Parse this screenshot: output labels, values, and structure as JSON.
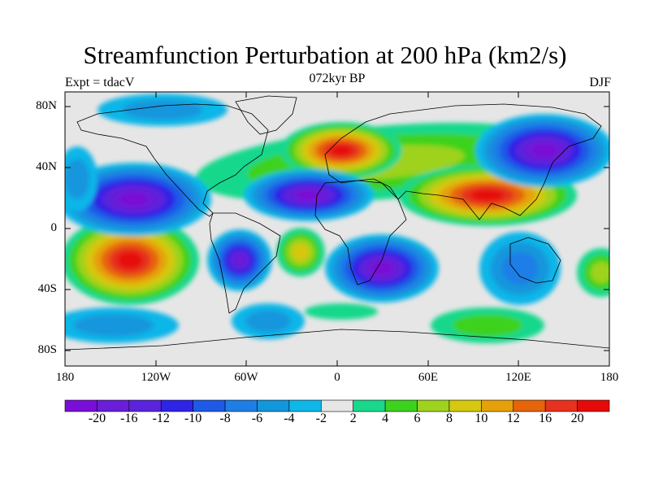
{
  "title": "Streamfunction Perturbation at 200 hPa (km2/s)",
  "subtitle_left": "Expt = tdacV",
  "subtitle_center": "072kyr BP",
  "subtitle_right": "DJF",
  "axes": {
    "y_ticks": [
      "80N",
      "40N",
      "0",
      "40S",
      "80S"
    ],
    "x_ticks": [
      "180",
      "120W",
      "60W",
      "0",
      "60E",
      "120E",
      "180"
    ]
  },
  "colorbar": {
    "labels": [
      "-20",
      "-16",
      "-12",
      "-10",
      "-8",
      "-6",
      "-4",
      "-2",
      "2",
      "4",
      "6",
      "8",
      "10",
      "12",
      "16",
      "20"
    ],
    "colors": [
      "#7a0ed6",
      "#6a1ed8",
      "#5a24dc",
      "#2f24e6",
      "#1e5ae6",
      "#1e7ee6",
      "#1296dc",
      "#0fb6e8",
      "#e6e6e6",
      "#19d88c",
      "#3cd21e",
      "#9ed21e",
      "#d6c80f",
      "#e6a00a",
      "#e6640a",
      "#e6321e",
      "#e60a0a"
    ]
  },
  "map_features": [
    {
      "name": "streamfunction-minimum",
      "location": "North Pacific",
      "level": "-20"
    },
    {
      "name": "streamfunction-minimum",
      "location": "North Atlantic",
      "level": "-20"
    },
    {
      "name": "streamfunction-minimum",
      "location": "East Asia",
      "level": "-20"
    },
    {
      "name": "streamfunction-minimum",
      "location": "Southern Africa",
      "level": "-20"
    },
    {
      "name": "streamfunction-minimum",
      "location": "South America",
      "level": "-16"
    },
    {
      "name": "streamfunction-maximum",
      "location": "South Pacific",
      "level": "20"
    },
    {
      "name": "streamfunction-maximum",
      "location": "South Asia",
      "level": "20"
    },
    {
      "name": "streamfunction-maximum",
      "location": "Europe",
      "level": "20"
    }
  ]
}
